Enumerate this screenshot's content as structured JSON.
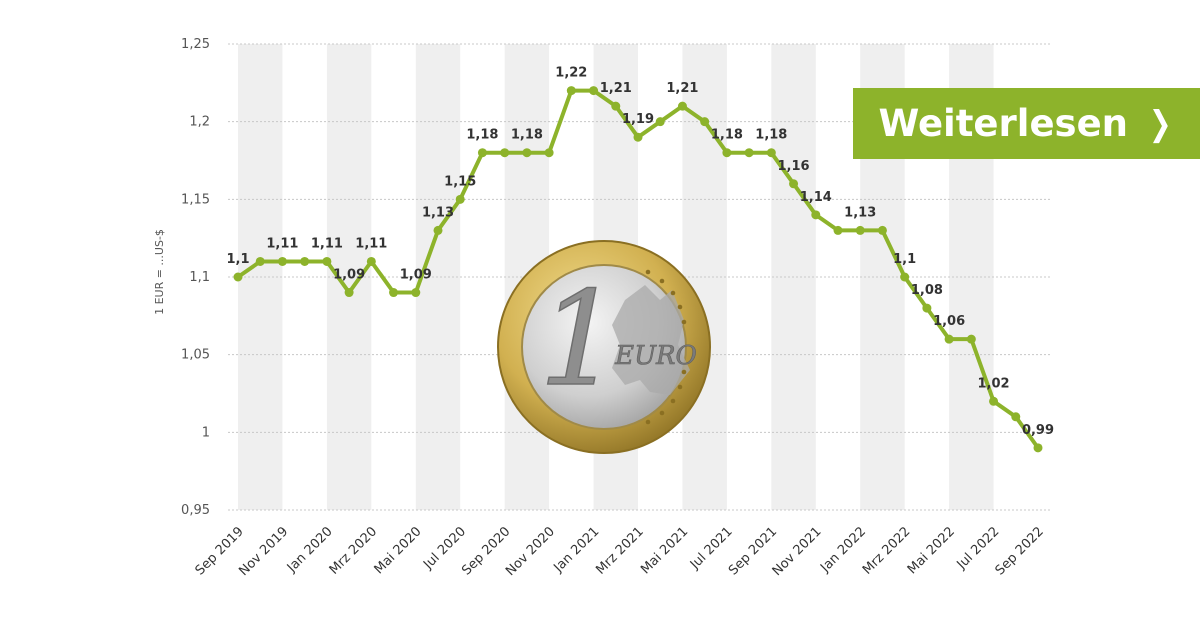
{
  "cta": {
    "label": "Weiterlesen",
    "icon": "chevron-right-icon"
  },
  "colors": {
    "line": "#8db32b",
    "cta_bg": "#8db32b",
    "band": "#efefef",
    "coin_outer": "#c9a84a",
    "coin_inner": "#c8c8c8"
  },
  "coin": {
    "icon": "euro-coin-icon",
    "numeral": "1",
    "word": "EURO"
  },
  "chart_data": {
    "type": "line",
    "ylabel": "1 EUR = ...US-$",
    "ylim": [
      0.95,
      1.25
    ],
    "yticks": [
      0.95,
      1,
      1.05,
      1.1,
      1.15,
      1.2,
      1.25
    ],
    "ytick_labels": [
      "0,95",
      "1",
      "1,05",
      "1,1",
      "1,15",
      "1,2",
      "1,25"
    ],
    "x_tick_labels": [
      "Sep 2019",
      "Nov 2019",
      "Jan 2020",
      "Mrz 2020",
      "Mai 2020",
      "Jul 2020",
      "Sep 2020",
      "Nov 2020",
      "Jan 2021",
      "Mrz 2021",
      "Mai 2021",
      "Jul 2021",
      "Sep 2021",
      "Nov 2021",
      "Jan 2022",
      "Mrz 2022",
      "Mai 2022",
      "Jul 2022",
      "Sep 2022"
    ],
    "x": [
      "Sep 2019",
      "Okt 2019",
      "Nov 2019",
      "Dez 2019",
      "Jan 2020",
      "Feb 2020",
      "Mrz 2020",
      "Apr 2020",
      "Mai 2020",
      "Jun 2020",
      "Jul 2020",
      "Aug 2020",
      "Sep 2020",
      "Okt 2020",
      "Nov 2020",
      "Dez 2020",
      "Jan 2021",
      "Feb 2021",
      "Mrz 2021",
      "Apr 2021",
      "Mai 2021",
      "Jun 2021",
      "Jul 2021",
      "Aug 2021",
      "Sep 2021",
      "Okt 2021",
      "Nov 2021",
      "Dez 2021",
      "Jan 2022",
      "Feb 2022",
      "Mrz 2022",
      "Apr 2022",
      "Mai 2022",
      "Jun 2022",
      "Jul 2022",
      "Aug 2022",
      "Sep 2022"
    ],
    "values": [
      1.1,
      1.11,
      1.11,
      1.11,
      1.11,
      1.09,
      1.11,
      1.09,
      1.09,
      1.13,
      1.15,
      1.18,
      1.18,
      1.18,
      1.18,
      1.22,
      1.22,
      1.21,
      1.19,
      1.2,
      1.21,
      1.2,
      1.18,
      1.18,
      1.18,
      1.16,
      1.14,
      1.13,
      1.13,
      1.13,
      1.1,
      1.08,
      1.06,
      1.06,
      1.02,
      1.01,
      0.99
    ],
    "data_labels": [
      {
        "i": 0,
        "text": "1,1"
      },
      {
        "i": 2,
        "text": "1,11"
      },
      {
        "i": 4,
        "text": "1,11"
      },
      {
        "i": 5,
        "text": "1,09"
      },
      {
        "i": 6,
        "text": "1,11"
      },
      {
        "i": 8,
        "text": "1,09"
      },
      {
        "i": 9,
        "text": "1,13"
      },
      {
        "i": 10,
        "text": "1,15"
      },
      {
        "i": 11,
        "text": "1,18"
      },
      {
        "i": 13,
        "text": "1,18"
      },
      {
        "i": 15,
        "text": "1,22"
      },
      {
        "i": 17,
        "text": "1,21"
      },
      {
        "i": 18,
        "text": "1,19"
      },
      {
        "i": 20,
        "text": "1,21"
      },
      {
        "i": 22,
        "text": "1,18"
      },
      {
        "i": 24,
        "text": "1,18"
      },
      {
        "i": 25,
        "text": "1,16"
      },
      {
        "i": 26,
        "text": "1,14"
      },
      {
        "i": 28,
        "text": "1,13"
      },
      {
        "i": 30,
        "text": "1,1"
      },
      {
        "i": 31,
        "text": "1,08"
      },
      {
        "i": 32,
        "text": "1,06"
      },
      {
        "i": 34,
        "text": "1,02"
      },
      {
        "i": 36,
        "text": "0,99"
      }
    ],
    "grid": true,
    "alternating_column_bands": true
  }
}
